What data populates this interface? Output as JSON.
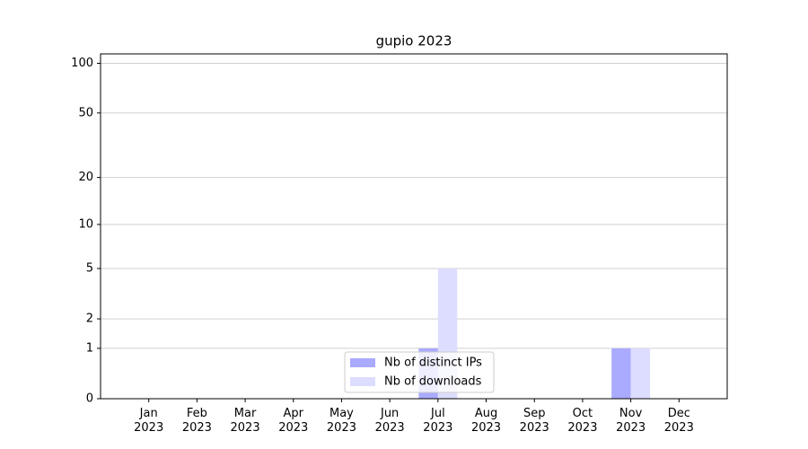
{
  "chart_data": {
    "type": "bar",
    "title": "gupio 2023",
    "categories": [
      "Jan\n2023",
      "Feb\n2023",
      "Mar\n2023",
      "Apr\n2023",
      "May\n2023",
      "Jun\n2023",
      "Jul\n2023",
      "Aug\n2023",
      "Sep\n2023",
      "Oct\n2023",
      "Nov\n2023",
      "Dec\n2023"
    ],
    "series": [
      {
        "name": "Nb of distinct IPs",
        "color": "#aaaaff",
        "values": [
          0,
          0,
          0,
          0,
          0,
          0,
          1,
          0,
          0,
          0,
          1,
          0
        ]
      },
      {
        "name": "Nb of downloads",
        "color": "#ddddff",
        "values": [
          0,
          0,
          0,
          0,
          0,
          0,
          5,
          0,
          0,
          0,
          1,
          0
        ]
      }
    ],
    "yscale": "log1p",
    "ylim": [
      0,
      114
    ],
    "yticks": [
      0,
      1,
      2,
      5,
      10,
      20,
      50,
      100
    ],
    "grid": true,
    "legend": "lower center"
  }
}
